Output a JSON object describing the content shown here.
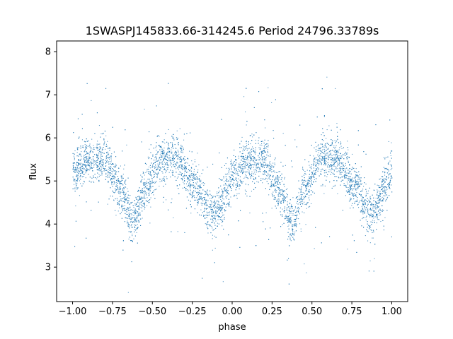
{
  "chart_data": {
    "type": "scatter",
    "title": "1SWASPJ145833.66-314245.6 Period 24796.33789s",
    "xlabel": "phase",
    "ylabel": "flux",
    "xlim": [
      -1.1,
      1.1
    ],
    "ylim": [
      2.2,
      8.25
    ],
    "xticks": [
      -1.0,
      -0.75,
      -0.5,
      -0.25,
      0.0,
      0.25,
      0.5,
      0.75,
      1.0
    ],
    "xtick_labels": [
      "−1.00",
      "−0.75",
      "−0.50",
      "−0.25",
      "0.00",
      "0.25",
      "0.50",
      "0.75",
      "1.00"
    ],
    "yticks": [
      3,
      4,
      5,
      6,
      7,
      8
    ],
    "ytick_labels": [
      "3",
      "4",
      "5",
      "6",
      "7",
      "8"
    ],
    "grid": false,
    "marker_color": "#1f77b4",
    "series": [
      {
        "curve_x": [
          -1.0,
          -0.9,
          -0.8,
          -0.7,
          -0.625,
          -0.55,
          -0.45,
          -0.35,
          -0.25,
          -0.125,
          0.0,
          0.1,
          0.2,
          0.3,
          0.375,
          0.45,
          0.55,
          0.65,
          0.75,
          0.875,
          1.0
        ],
        "curve_y": [
          5.2,
          5.5,
          5.5,
          4.8,
          4.05,
          4.8,
          5.5,
          5.55,
          4.95,
          4.25,
          5.0,
          5.45,
          5.45,
          4.8,
          4.05,
          4.8,
          5.5,
          5.55,
          4.95,
          4.25,
          5.2
        ],
        "scatter": 0.25
      }
    ]
  }
}
